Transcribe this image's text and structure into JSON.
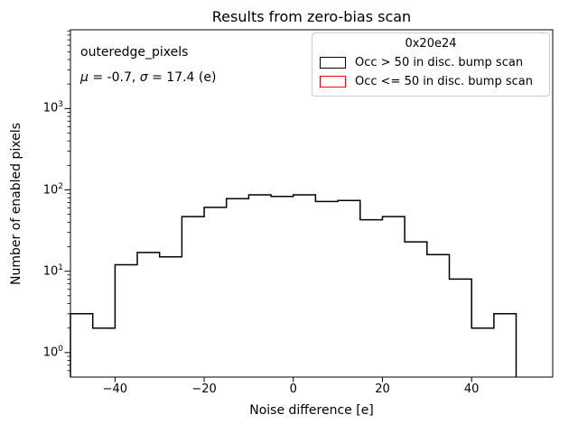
{
  "figure": {
    "title": "Results from zero-bias scan"
  },
  "annotation": {
    "line1": "outeredge_pixels",
    "mu_symbol": "μ",
    "mu_rest": " = -0.7, ",
    "sigma_symbol": "σ",
    "sigma_rest": " = 17.4 (e)"
  },
  "legend": {
    "title": "0x20e24",
    "entries": [
      {
        "label": "Occ > 50 in disc. bump scan",
        "color": "#000000"
      },
      {
        "label": "Occ <= 50 in disc. bump scan",
        "color": "#ff0000"
      }
    ]
  },
  "chart_data": {
    "type": "bar",
    "subtype": "step-histogram",
    "title": "Results from zero-bias scan",
    "xlabel": "Noise difference [e]",
    "ylabel": "Number of enabled pixels",
    "yscale": "log",
    "xlim": [
      -50,
      58.2
    ],
    "ylim": [
      0.5,
      9300
    ],
    "bin_edges": [
      -50,
      -45,
      -40,
      -35,
      -30,
      -25,
      -20,
      -15,
      -10,
      -5,
      0,
      5,
      10,
      15,
      20,
      25,
      30,
      35,
      40,
      45,
      50
    ],
    "series": [
      {
        "name": "Occ > 50 in disc. bump scan",
        "color": "#000000",
        "counts": [
          3,
          2,
          12,
          17,
          15,
          47,
          61,
          78,
          87,
          83,
          87,
          72,
          74,
          43,
          47,
          23,
          16,
          8,
          2,
          3
        ]
      },
      {
        "name": "Occ <= 50 in disc. bump scan",
        "color": "#ff0000",
        "counts": []
      }
    ],
    "xticks": {
      "values": [
        -40,
        -20,
        0,
        20,
        40
      ],
      "labels": [
        "−40",
        "−20",
        "0",
        "20",
        "40"
      ]
    },
    "yticks": {
      "values": [
        1,
        10,
        100,
        1000
      ],
      "exponents": [
        0,
        1,
        2,
        3
      ]
    },
    "stats": {
      "mu": -0.7,
      "sigma": 17.4
    },
    "annotation_label": "outeredge_pixels",
    "legend_title": "0x20e24",
    "legend_position": "upper right",
    "grid": false
  }
}
